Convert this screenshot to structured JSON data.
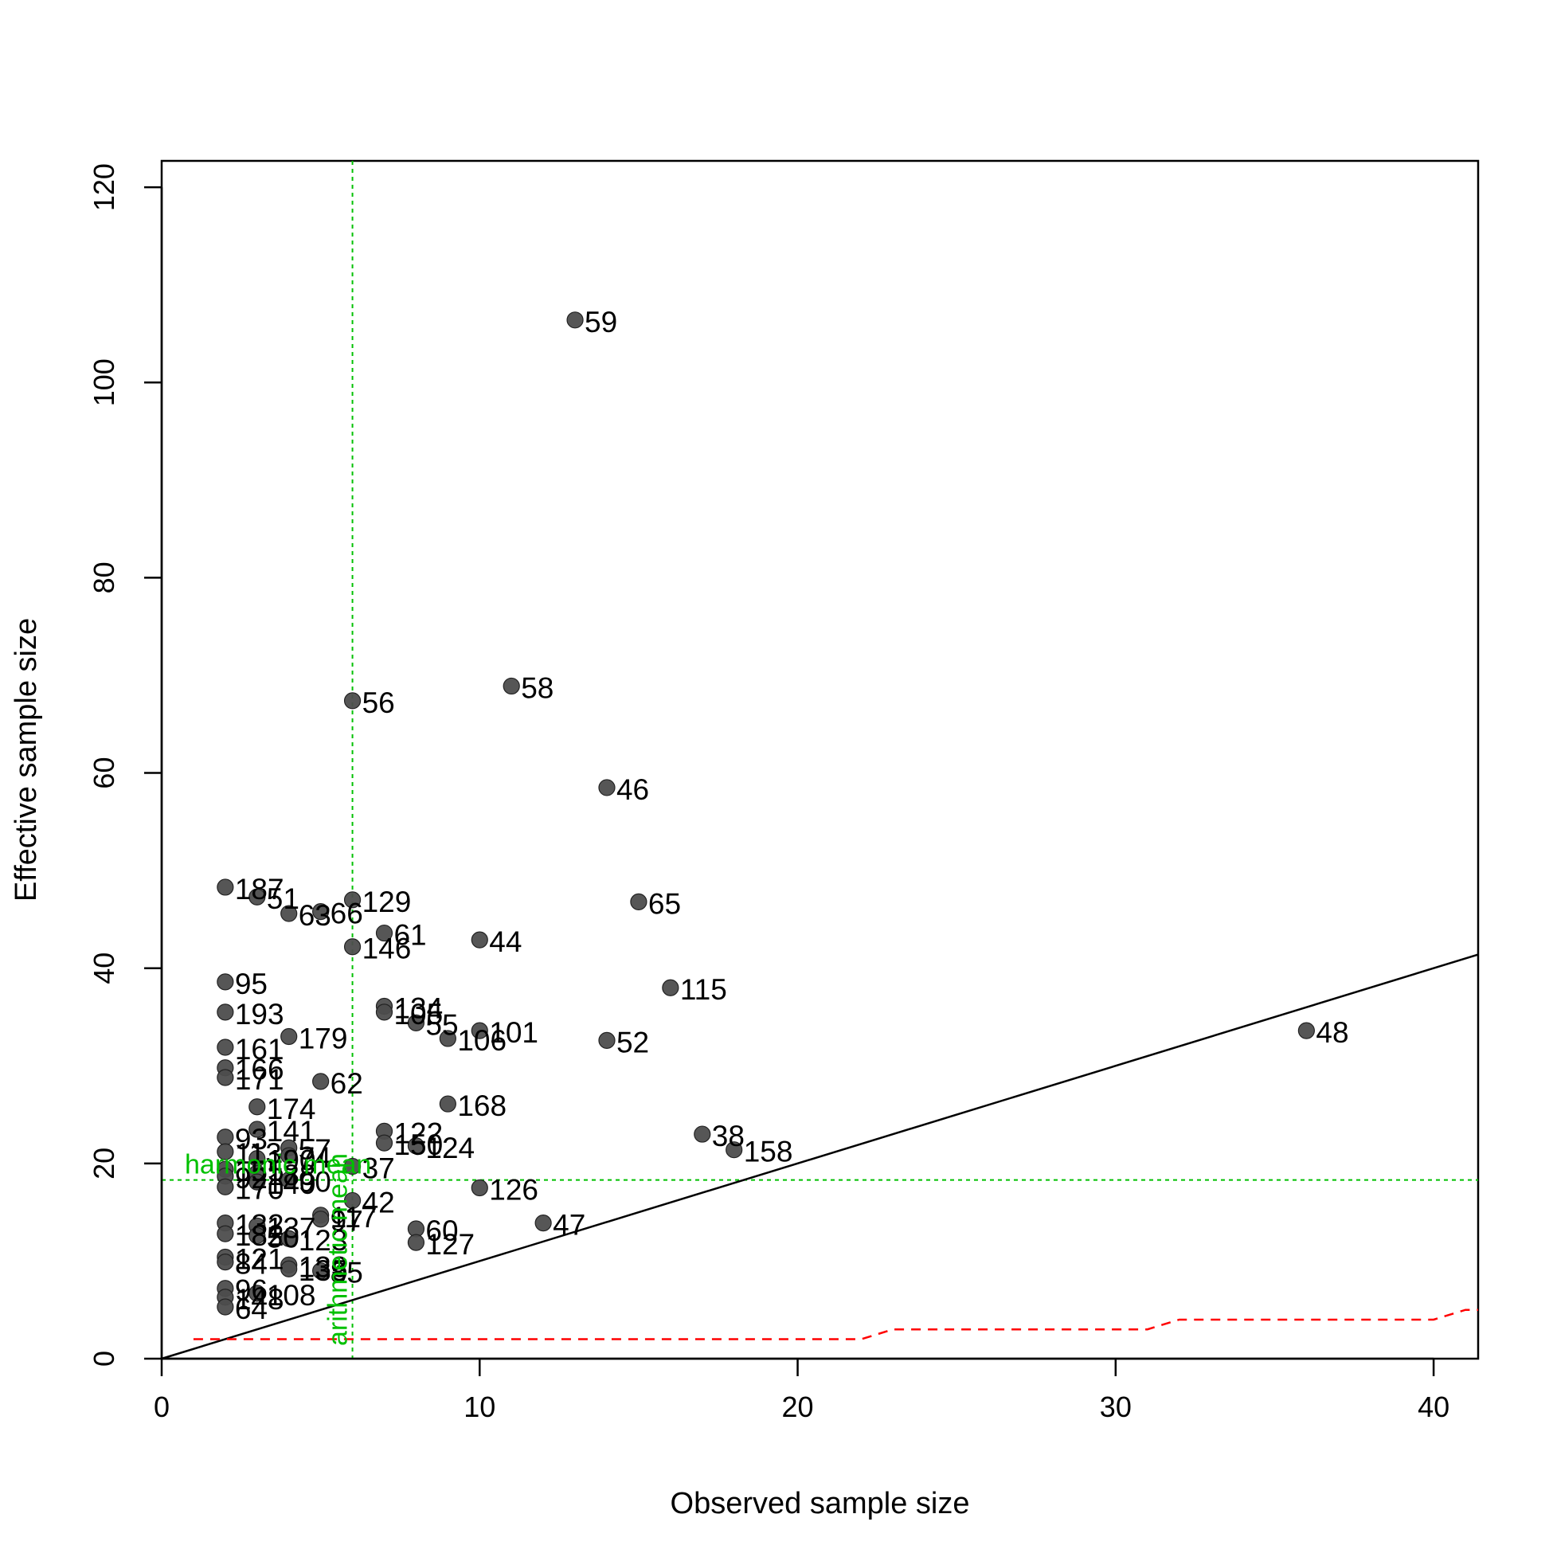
{
  "chart_data": {
    "type": "scatter",
    "xlabel": "Observed sample size",
    "ylabel": "Effective sample size",
    "xlim": [
      0,
      41.4
    ],
    "ylim": [
      0,
      122.7
    ],
    "xticks": [
      0,
      10,
      20,
      30,
      40
    ],
    "yticks": [
      0,
      20,
      40,
      60,
      80,
      100,
      120
    ],
    "grid": false,
    "point_color": "#4d4d4d",
    "identity_line_color": "#000000",
    "reference_color": "#00c000",
    "lower_bound_color": "#ff0000",
    "reference_lines": {
      "arithmetic_mean": {
        "label": "arithmetic mean",
        "x": 6
      },
      "harmonic_mean": {
        "label": "harmonic mean",
        "y": 18.3
      }
    },
    "identity_line": {
      "slope": 1,
      "intercept": 0
    },
    "lower_bound_step": [
      {
        "x": [
          1,
          22
        ],
        "y": 2
      },
      {
        "x": [
          23,
          31
        ],
        "y": 3
      },
      {
        "x": [
          32,
          40
        ],
        "y": 4
      },
      {
        "x": [
          41,
          41.4
        ],
        "y": 5
      }
    ],
    "points": [
      {
        "label": "59",
        "x": 13,
        "y": 106.4
      },
      {
        "label": "58",
        "x": 11,
        "y": 68.9
      },
      {
        "label": "56",
        "x": 6,
        "y": 67.4
      },
      {
        "label": "46",
        "x": 14,
        "y": 58.5
      },
      {
        "label": "187",
        "x": 2,
        "y": 48.3
      },
      {
        "label": "51",
        "x": 3,
        "y": 47.3
      },
      {
        "label": "129",
        "x": 6,
        "y": 47.0
      },
      {
        "label": "65",
        "x": 15,
        "y": 46.8
      },
      {
        "label": "66",
        "x": 5,
        "y": 45.8
      },
      {
        "label": "63",
        "x": 4,
        "y": 45.6
      },
      {
        "label": "61",
        "x": 7,
        "y": 43.6
      },
      {
        "label": "44",
        "x": 10,
        "y": 42.9
      },
      {
        "label": "146",
        "x": 6,
        "y": 42.2
      },
      {
        "label": "95",
        "x": 2,
        "y": 38.6
      },
      {
        "label": "115",
        "x": 16,
        "y": 38.0
      },
      {
        "label": "134",
        "x": 7,
        "y": 36.1
      },
      {
        "label": "193",
        "x": 2,
        "y": 35.5
      },
      {
        "label": "105",
        "x": 7,
        "y": 35.5
      },
      {
        "label": "55",
        "x": 8,
        "y": 34.4
      },
      {
        "label": "48",
        "x": 36,
        "y": 33.6
      },
      {
        "label": "101",
        "x": 10,
        "y": 33.6
      },
      {
        "label": "179",
        "x": 4,
        "y": 33.0
      },
      {
        "label": "106",
        "x": 9,
        "y": 32.8
      },
      {
        "label": "52",
        "x": 14,
        "y": 32.6
      },
      {
        "label": "161",
        "x": 2,
        "y": 31.9
      },
      {
        "label": "166",
        "x": 2,
        "y": 29.8
      },
      {
        "label": "171",
        "x": 2,
        "y": 28.8
      },
      {
        "label": "62",
        "x": 5,
        "y": 28.4
      },
      {
        "label": "168",
        "x": 9,
        "y": 26.1
      },
      {
        "label": "174",
        "x": 3,
        "y": 25.8
      },
      {
        "label": "122",
        "x": 7,
        "y": 23.3
      },
      {
        "label": "141",
        "x": 3,
        "y": 23.5
      },
      {
        "label": "38",
        "x": 17,
        "y": 23.0
      },
      {
        "label": "93",
        "x": 2,
        "y": 22.7
      },
      {
        "label": "150",
        "x": 7,
        "y": 22.1
      },
      {
        "label": "124",
        "x": 8,
        "y": 21.8
      },
      {
        "label": "57",
        "x": 4,
        "y": 21.6
      },
      {
        "label": "158",
        "x": 18,
        "y": 21.4
      },
      {
        "label": "113",
        "x": 2,
        "y": 21.2
      },
      {
        "label": "74",
        "x": 4,
        "y": 20.8
      },
      {
        "label": "190",
        "x": 3,
        "y": 20.5
      },
      {
        "label": "37",
        "x": 6,
        "y": 19.7
      },
      {
        "label": "155",
        "x": 2,
        "y": 19.4
      },
      {
        "label": "188",
        "x": 3,
        "y": 19.0
      },
      {
        "label": "92",
        "x": 2,
        "y": 18.7
      },
      {
        "label": "90",
        "x": 4,
        "y": 18.3
      },
      {
        "label": "140",
        "x": 3,
        "y": 18.1
      },
      {
        "label": "170",
        "x": 2,
        "y": 17.6
      },
      {
        "label": "126",
        "x": 10,
        "y": 17.5
      },
      {
        "label": "42",
        "x": 6,
        "y": 16.2
      },
      {
        "label": "117",
        "x": 5,
        "y": 14.7
      },
      {
        "label": "97",
        "x": 5,
        "y": 14.3
      },
      {
        "label": "47",
        "x": 12,
        "y": 13.9
      },
      {
        "label": "132",
        "x": 2,
        "y": 13.9
      },
      {
        "label": "137",
        "x": 3,
        "y": 13.6
      },
      {
        "label": "60",
        "x": 8,
        "y": 13.3
      },
      {
        "label": "182",
        "x": 2,
        "y": 12.8
      },
      {
        "label": "50",
        "x": 3,
        "y": 12.6
      },
      {
        "label": "123",
        "x": 4,
        "y": 12.3
      },
      {
        "label": "127",
        "x": 8,
        "y": 11.9
      },
      {
        "label": "121",
        "x": 2,
        "y": 10.4
      },
      {
        "label": "84",
        "x": 2,
        "y": 9.9
      },
      {
        "label": "133",
        "x": 4,
        "y": 9.6
      },
      {
        "label": "135",
        "x": 4,
        "y": 9.2
      },
      {
        "label": "85",
        "x": 5,
        "y": 9.0
      },
      {
        "label": "96",
        "x": 2,
        "y": 7.2
      },
      {
        "label": "108",
        "x": 3,
        "y": 6.7
      },
      {
        "label": "148",
        "x": 2,
        "y": 6.3
      },
      {
        "label": "64",
        "x": 2,
        "y": 5.3
      }
    ]
  }
}
